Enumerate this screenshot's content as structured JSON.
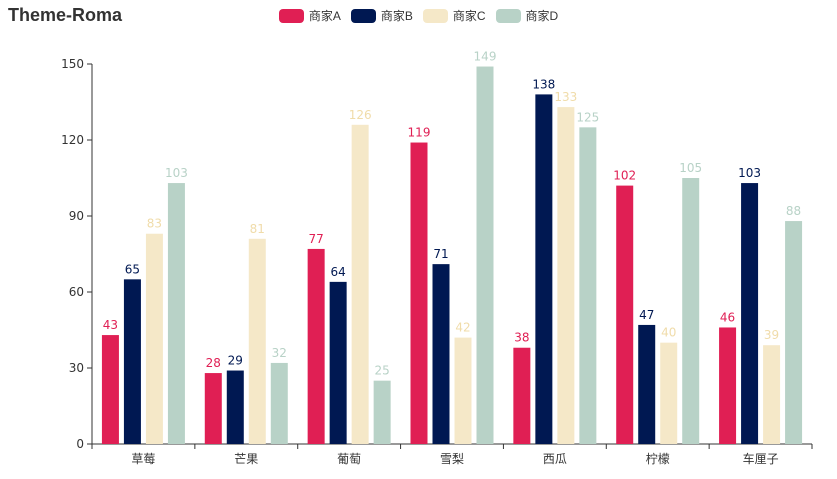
{
  "colors": {
    "series": [
      "#e01f54",
      "#001852",
      "#f5e8c8",
      "#b8d2c7"
    ],
    "axis": "#333333",
    "grid": "#e0e6f1"
  },
  "chart_data": {
    "type": "bar",
    "title": "Theme-Roma",
    "categories": [
      "草莓",
      "芒果",
      "葡萄",
      "雪梨",
      "西瓜",
      "柠檬",
      "车厘子"
    ],
    "series": [
      {
        "name": "商家A",
        "values": [
          43,
          28,
          77,
          119,
          38,
          102,
          46
        ]
      },
      {
        "name": "商家B",
        "values": [
          65,
          29,
          64,
          71,
          138,
          47,
          103
        ]
      },
      {
        "name": "商家C",
        "values": [
          83,
          81,
          126,
          42,
          133,
          40,
          39
        ]
      },
      {
        "name": "商家D",
        "values": [
          103,
          32,
          25,
          149,
          125,
          105,
          88
        ]
      }
    ],
    "yticks": [
      "0",
      "30",
      "60",
      "90",
      "120",
      "150"
    ],
    "ylim": [
      0,
      150
    ],
    "grid": false,
    "legend_position": "top-center",
    "xlabel": "",
    "ylabel": ""
  }
}
